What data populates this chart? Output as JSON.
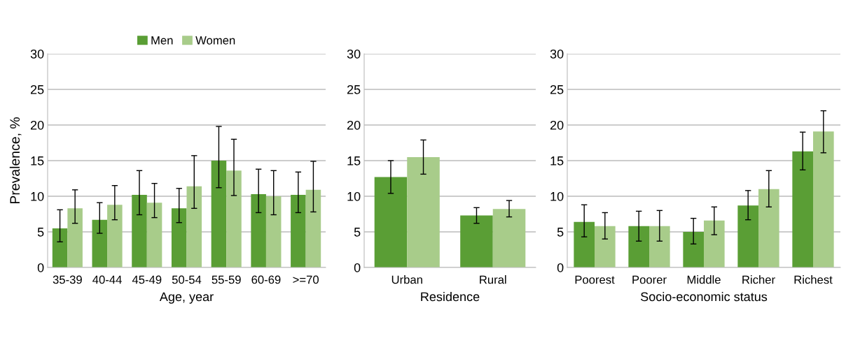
{
  "chart_data": [
    {
      "type": "bar",
      "xlabel": "Age, year",
      "ylabel": "Prevalence, %",
      "categories": [
        "35-39",
        "40-44",
        "45-49",
        "50-54",
        "55-59",
        "60-69",
        ">=70"
      ],
      "ylim": [
        0,
        30
      ],
      "yticks": [
        0,
        5,
        10,
        15,
        20,
        25,
        30
      ],
      "grid": "y",
      "legend": "top",
      "series": [
        {
          "name": "Men",
          "color": "#5a9e35",
          "values": [
            5.5,
            6.7,
            10.2,
            8.3,
            15.0,
            10.3,
            10.2
          ],
          "errors": [
            [
              3.6,
              8.1
            ],
            [
              4.8,
              9.1
            ],
            [
              7.4,
              13.6
            ],
            [
              6.3,
              11.1
            ],
            [
              11.2,
              19.8
            ],
            [
              7.7,
              13.8
            ],
            [
              7.7,
              13.4
            ]
          ]
        },
        {
          "name": "Women",
          "color": "#a8cc8a",
          "values": [
            8.3,
            8.8,
            9.1,
            11.4,
            13.6,
            10.0,
            10.9
          ],
          "errors": [
            [
              6.2,
              10.9
            ],
            [
              6.7,
              11.5
            ],
            [
              7.0,
              11.8
            ],
            [
              8.3,
              15.7
            ],
            [
              10.1,
              18.0
            ],
            [
              7.4,
              13.6
            ],
            [
              7.8,
              14.9
            ]
          ]
        }
      ]
    },
    {
      "type": "bar",
      "xlabel": "Residence",
      "categories": [
        "Urban",
        "Rural"
      ],
      "ylim": [
        0,
        30
      ],
      "yticks": [
        0,
        5,
        10,
        15,
        20,
        25,
        30
      ],
      "grid": "y",
      "series": [
        {
          "color": "#5a9e35",
          "values": [
            12.7,
            7.3
          ],
          "errors": [
            [
              10.4,
              15.0
            ],
            [
              6.2,
              8.4
            ]
          ]
        },
        {
          "color": "#a8cc8a",
          "values": [
            15.5,
            8.2
          ],
          "errors": [
            [
              13.1,
              17.9
            ],
            [
              7.1,
              9.4
            ]
          ]
        }
      ]
    },
    {
      "type": "bar",
      "xlabel": "Socio-economic status",
      "categories": [
        "Poorest",
        "Poorer",
        "Middle",
        "Richer",
        "Richest"
      ],
      "ylim": [
        0,
        30
      ],
      "yticks": [
        0,
        5,
        10,
        15,
        20,
        25,
        30
      ],
      "grid": "y",
      "series": [
        {
          "color": "#5a9e35",
          "values": [
            6.4,
            5.8,
            5.0,
            8.7,
            16.3
          ],
          "errors": [
            [
              4.3,
              8.8
            ],
            [
              3.7,
              7.9
            ],
            [
              3.3,
              6.9
            ],
            [
              6.7,
              10.8
            ],
            [
              13.7,
              19.0
            ]
          ]
        },
        {
          "color": "#a8cc8a",
          "values": [
            5.8,
            5.8,
            6.6,
            11.0,
            19.1
          ],
          "errors": [
            [
              4.0,
              7.7
            ],
            [
              3.7,
              8.0
            ],
            [
              4.6,
              8.5
            ],
            [
              8.5,
              13.6
            ],
            [
              16.1,
              22.0
            ]
          ]
        }
      ]
    }
  ]
}
